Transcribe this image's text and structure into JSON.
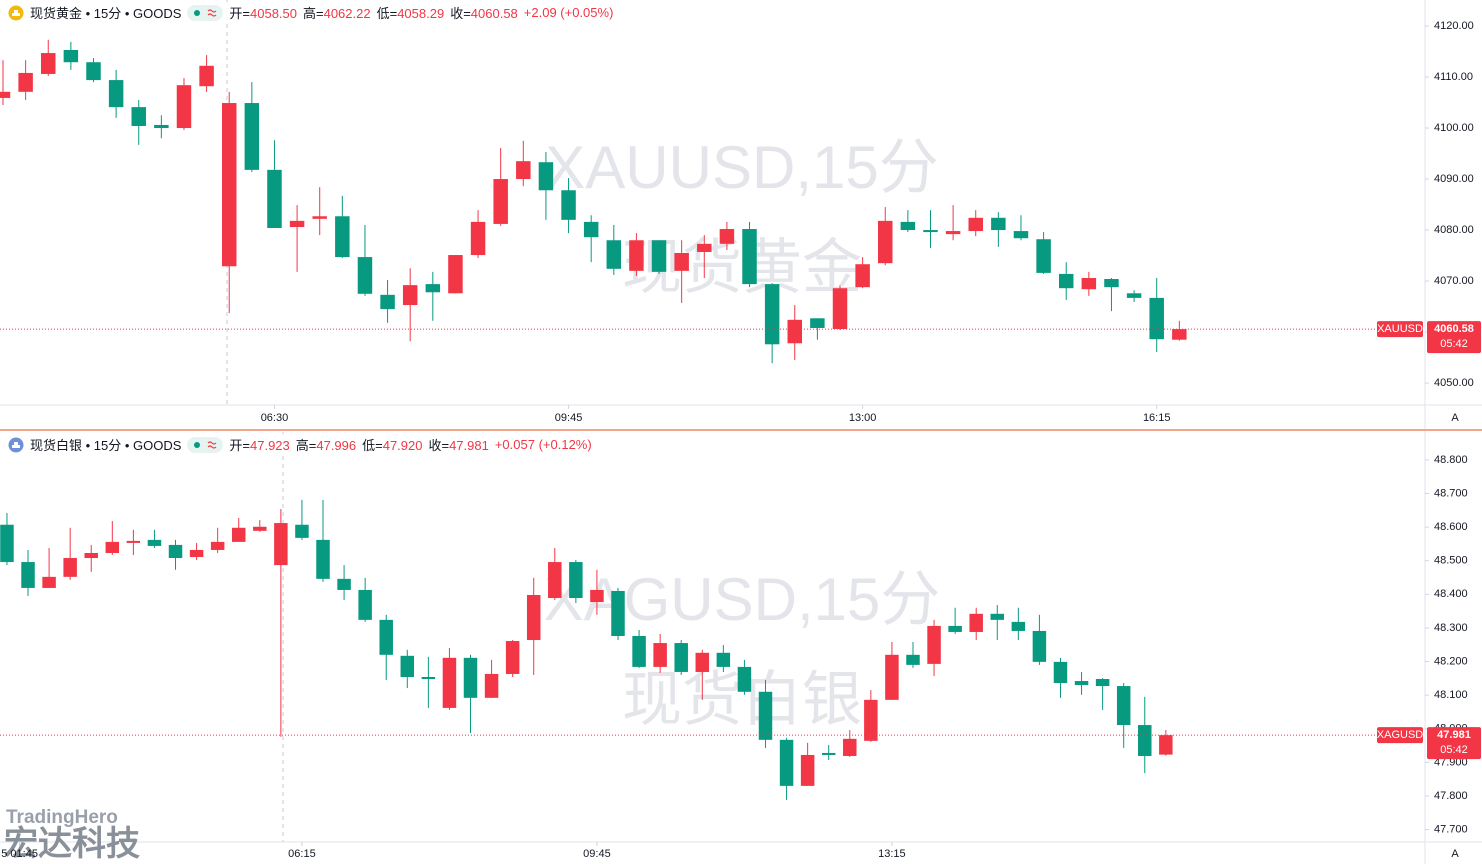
{
  "chart_data": [
    {
      "type": "candlestick",
      "title": "现货黄金 • 15分 • GOODS",
      "ohlc": [
        {
          "label": "开=",
          "value": "4058.50"
        },
        {
          "label": "高=",
          "value": "4062.22"
        },
        {
          "label": "低=",
          "value": "4058.29"
        },
        {
          "label": "收=",
          "value": "4060.58"
        }
      ],
      "change": "+2.09 (+0.05%)",
      "watermark": [
        "XAUUSD,15分",
        "现货黄金"
      ],
      "symbol": "XAUUSD",
      "countdown": "05:42",
      "scale_button": "A",
      "up_color": "#f23645",
      "down_color": "#089981",
      "icon_color": "#f0b90b",
      "grid": false,
      "xlim": [
        -0.133,
        62.86
      ],
      "xticks": [
        {
          "value": 12,
          "label": "06:30"
        },
        {
          "value": 25,
          "label": "09:45"
        },
        {
          "value": 38,
          "label": "13:00"
        },
        {
          "value": 51,
          "label": "16:15"
        }
      ],
      "ylim": [
        4045.7,
        4125.1
      ],
      "yticks": [
        {
          "value": 4050,
          "label": "4050.00"
        },
        {
          "value": 4060,
          "label": "4060.00"
        },
        {
          "value": 4070,
          "label": "4070.00"
        },
        {
          "value": 4080,
          "label": "4080.00"
        },
        {
          "value": 4090,
          "label": "4090.00"
        },
        {
          "value": 4100,
          "label": "4100.00"
        },
        {
          "value": 4110,
          "label": "4110.00"
        },
        {
          "value": 4120,
          "label": "4120.00"
        }
      ],
      "open": [
        4105.9,
        4107.1,
        4110.6,
        4115.3,
        4112.9,
        4109.4,
        4104.1,
        4100.6,
        4100.0,
        4108.2,
        4072.9,
        4104.9,
        4091.8,
        4080.6,
        4082.2,
        4082.7,
        4074.7,
        4067.3,
        4065.3,
        4069.4,
        4067.6,
        4075.1,
        4081.2,
        4090.0,
        4093.3,
        4087.8,
        4081.6,
        4078.0,
        4072.0,
        4078.0,
        4072.0,
        4075.7,
        4077.3,
        4080.2,
        4069.4,
        4057.8,
        4062.7,
        4060.6,
        4068.8,
        4073.5,
        4081.6,
        4080.0,
        4079.2,
        4079.8,
        4082.4,
        4079.8,
        4078.2,
        4071.4,
        4068.4,
        4070.4,
        4067.6,
        4066.7,
        4058.5
      ],
      "high": [
        4113.3,
        4113.3,
        4117.3,
        4116.9,
        4113.7,
        4111.4,
        4105.5,
        4102.5,
        4109.8,
        4114.3,
        4107.1,
        4109.0,
        4097.6,
        4084.9,
        4088.4,
        4086.7,
        4081.0,
        4070.2,
        4072.5,
        4071.8,
        4075.1,
        4083.9,
        4096.1,
        4097.5,
        4095.3,
        4090.2,
        4082.9,
        4081.0,
        4079.4,
        4078.0,
        4078.0,
        4079.0,
        4081.6,
        4081.6,
        4069.6,
        4065.3,
        4062.7,
        4069.2,
        4074.7,
        4084.5,
        4083.9,
        4083.9,
        4084.9,
        4083.9,
        4083.5,
        4082.9,
        4079.6,
        4073.7,
        4071.8,
        4070.6,
        4068.2,
        4070.6,
        4062.22
      ],
      "low": [
        4104.5,
        4105.5,
        4110.2,
        4111.4,
        4109.0,
        4102.0,
        4096.7,
        4098.0,
        4099.6,
        4107.1,
        4063.7,
        4091.4,
        4080.4,
        4071.8,
        4079.0,
        4074.5,
        4067.1,
        4061.8,
        4058.2,
        4062.2,
        4067.6,
        4074.5,
        4080.8,
        4088.6,
        4082.0,
        4079.4,
        4073.7,
        4071.2,
        4071.0,
        4071.4,
        4065.7,
        4070.6,
        4076.1,
        4068.8,
        4053.9,
        4054.5,
        4058.5,
        4060.4,
        4068.6,
        4073.1,
        4079.6,
        4076.5,
        4078.0,
        4078.8,
        4076.7,
        4078.0,
        4071.4,
        4066.3,
        4067.1,
        4064.1,
        4065.9,
        4056.1,
        4058.29
      ],
      "close": [
        4107.1,
        4110.8,
        4114.7,
        4112.9,
        4109.4,
        4104.1,
        4100.4,
        4100.0,
        4108.4,
        4112.2,
        4104.9,
        4091.8,
        4080.4,
        4081.8,
        4082.7,
        4074.7,
        4067.5,
        4064.5,
        4069.2,
        4067.8,
        4075.1,
        4081.6,
        4090.0,
        4093.5,
        4087.8,
        4082.0,
        4078.6,
        4072.4,
        4078.0,
        4071.8,
        4075.5,
        4077.3,
        4080.2,
        4069.4,
        4057.6,
        4062.4,
        4060.8,
        4068.6,
        4073.3,
        4081.8,
        4080.0,
        4079.6,
        4079.8,
        4082.4,
        4080.0,
        4078.4,
        4071.6,
        4068.6,
        4070.6,
        4068.8,
        4066.7,
        4058.6,
        4060.58
      ]
    },
    {
      "type": "candlestick",
      "title": "现货白银 • 15分 • GOODS",
      "ohlc": [
        {
          "label": "开=",
          "value": "47.923"
        },
        {
          "label": "高=",
          "value": "47.996"
        },
        {
          "label": "低=",
          "value": "47.920"
        },
        {
          "label": "收=",
          "value": "47.981"
        }
      ],
      "change": "+0.057 (+0.12%)",
      "watermark": [
        "XAGUSD,15分",
        "现货白银"
      ],
      "symbol": "XAGUSD",
      "countdown": "05:42",
      "scale_button": "A",
      "up_color": "#f23645",
      "down_color": "#089981",
      "icon_color": "#6f8fd8",
      "grid": false,
      "xlim": [
        -0.33,
        67.3
      ],
      "xticks": [
        {
          "value": 0.6,
          "label": "5 01:45"
        },
        {
          "value": 14,
          "label": "06:15"
        },
        {
          "value": 28,
          "label": "09:45"
        },
        {
          "value": 42,
          "label": "13:15"
        }
      ],
      "ylim": [
        47.663,
        48.883
      ],
      "yticks": [
        {
          "value": 47.7,
          "label": "47.700"
        },
        {
          "value": 47.8,
          "label": "47.800"
        },
        {
          "value": 47.9,
          "label": "47.900"
        },
        {
          "value": 48.0,
          "label": "48.000"
        },
        {
          "value": 48.1,
          "label": "48.100"
        },
        {
          "value": 48.2,
          "label": "48.200"
        },
        {
          "value": 48.3,
          "label": "48.300"
        },
        {
          "value": 48.4,
          "label": "48.400"
        },
        {
          "value": 48.5,
          "label": "48.500"
        },
        {
          "value": 48.6,
          "label": "48.600"
        },
        {
          "value": 48.7,
          "label": "48.700"
        },
        {
          "value": 48.8,
          "label": "48.800"
        }
      ],
      "open": [
        48.607,
        48.496,
        48.419,
        48.452,
        48.508,
        48.523,
        48.553,
        48.562,
        48.547,
        48.511,
        48.532,
        48.556,
        48.589,
        48.487,
        48.607,
        48.562,
        48.446,
        48.413,
        48.324,
        48.217,
        48.154,
        48.062,
        48.211,
        48.092,
        48.163,
        48.264,
        48.389,
        48.496,
        48.377,
        48.41,
        48.276,
        48.184,
        48.255,
        48.169,
        48.226,
        48.184,
        48.11,
        47.967,
        47.83,
        47.928,
        47.919,
        47.964,
        48.086,
        48.22,
        48.193,
        48.306,
        48.288,
        48.342,
        48.318,
        48.291,
        48.199,
        48.142,
        48.148,
        48.127,
        48.011,
        47.923
      ],
      "high": [
        48.642,
        48.532,
        48.538,
        48.598,
        48.547,
        48.618,
        48.592,
        48.592,
        48.562,
        48.553,
        48.598,
        48.627,
        48.621,
        48.654,
        48.681,
        48.681,
        48.487,
        48.449,
        48.339,
        48.235,
        48.214,
        48.24,
        48.22,
        48.205,
        48.264,
        48.449,
        48.538,
        48.502,
        48.473,
        48.419,
        48.294,
        48.282,
        48.264,
        48.235,
        48.249,
        48.205,
        48.145,
        47.973,
        47.958,
        47.952,
        47.996,
        48.115,
        48.258,
        48.258,
        48.324,
        48.36,
        48.36,
        48.368,
        48.36,
        48.339,
        48.211,
        48.169,
        48.151,
        48.136,
        48.095,
        47.996
      ],
      "low": [
        48.487,
        48.395,
        48.419,
        48.443,
        48.467,
        48.517,
        48.517,
        48.538,
        48.473,
        48.502,
        48.523,
        48.556,
        48.586,
        47.976,
        48.562,
        48.437,
        48.383,
        48.318,
        48.145,
        48.121,
        48.062,
        48.056,
        47.987,
        48.092,
        48.154,
        48.16,
        48.383,
        48.374,
        48.339,
        48.264,
        48.181,
        48.166,
        48.16,
        48.086,
        48.169,
        48.101,
        47.943,
        47.788,
        47.83,
        47.907,
        47.916,
        47.961,
        48.086,
        48.181,
        48.157,
        48.282,
        48.264,
        48.264,
        48.264,
        48.19,
        48.092,
        48.101,
        48.056,
        47.943,
        47.868,
        47.92
      ],
      "close": [
        48.496,
        48.419,
        48.452,
        48.508,
        48.523,
        48.556,
        48.559,
        48.544,
        48.508,
        48.532,
        48.556,
        48.598,
        48.601,
        48.612,
        48.568,
        48.446,
        48.413,
        48.324,
        48.22,
        48.154,
        48.148,
        48.211,
        48.092,
        48.163,
        48.261,
        48.398,
        48.496,
        48.389,
        48.413,
        48.276,
        48.184,
        48.255,
        48.169,
        48.226,
        48.184,
        48.11,
        47.967,
        47.83,
        47.922,
        47.922,
        47.97,
        48.086,
        48.22,
        48.19,
        48.306,
        48.288,
        48.342,
        48.324,
        48.291,
        48.199,
        48.136,
        48.13,
        48.127,
        48.011,
        47.919,
        47.981
      ]
    }
  ],
  "logo": {
    "name": "TradingHero",
    "company": "宏达科技"
  }
}
